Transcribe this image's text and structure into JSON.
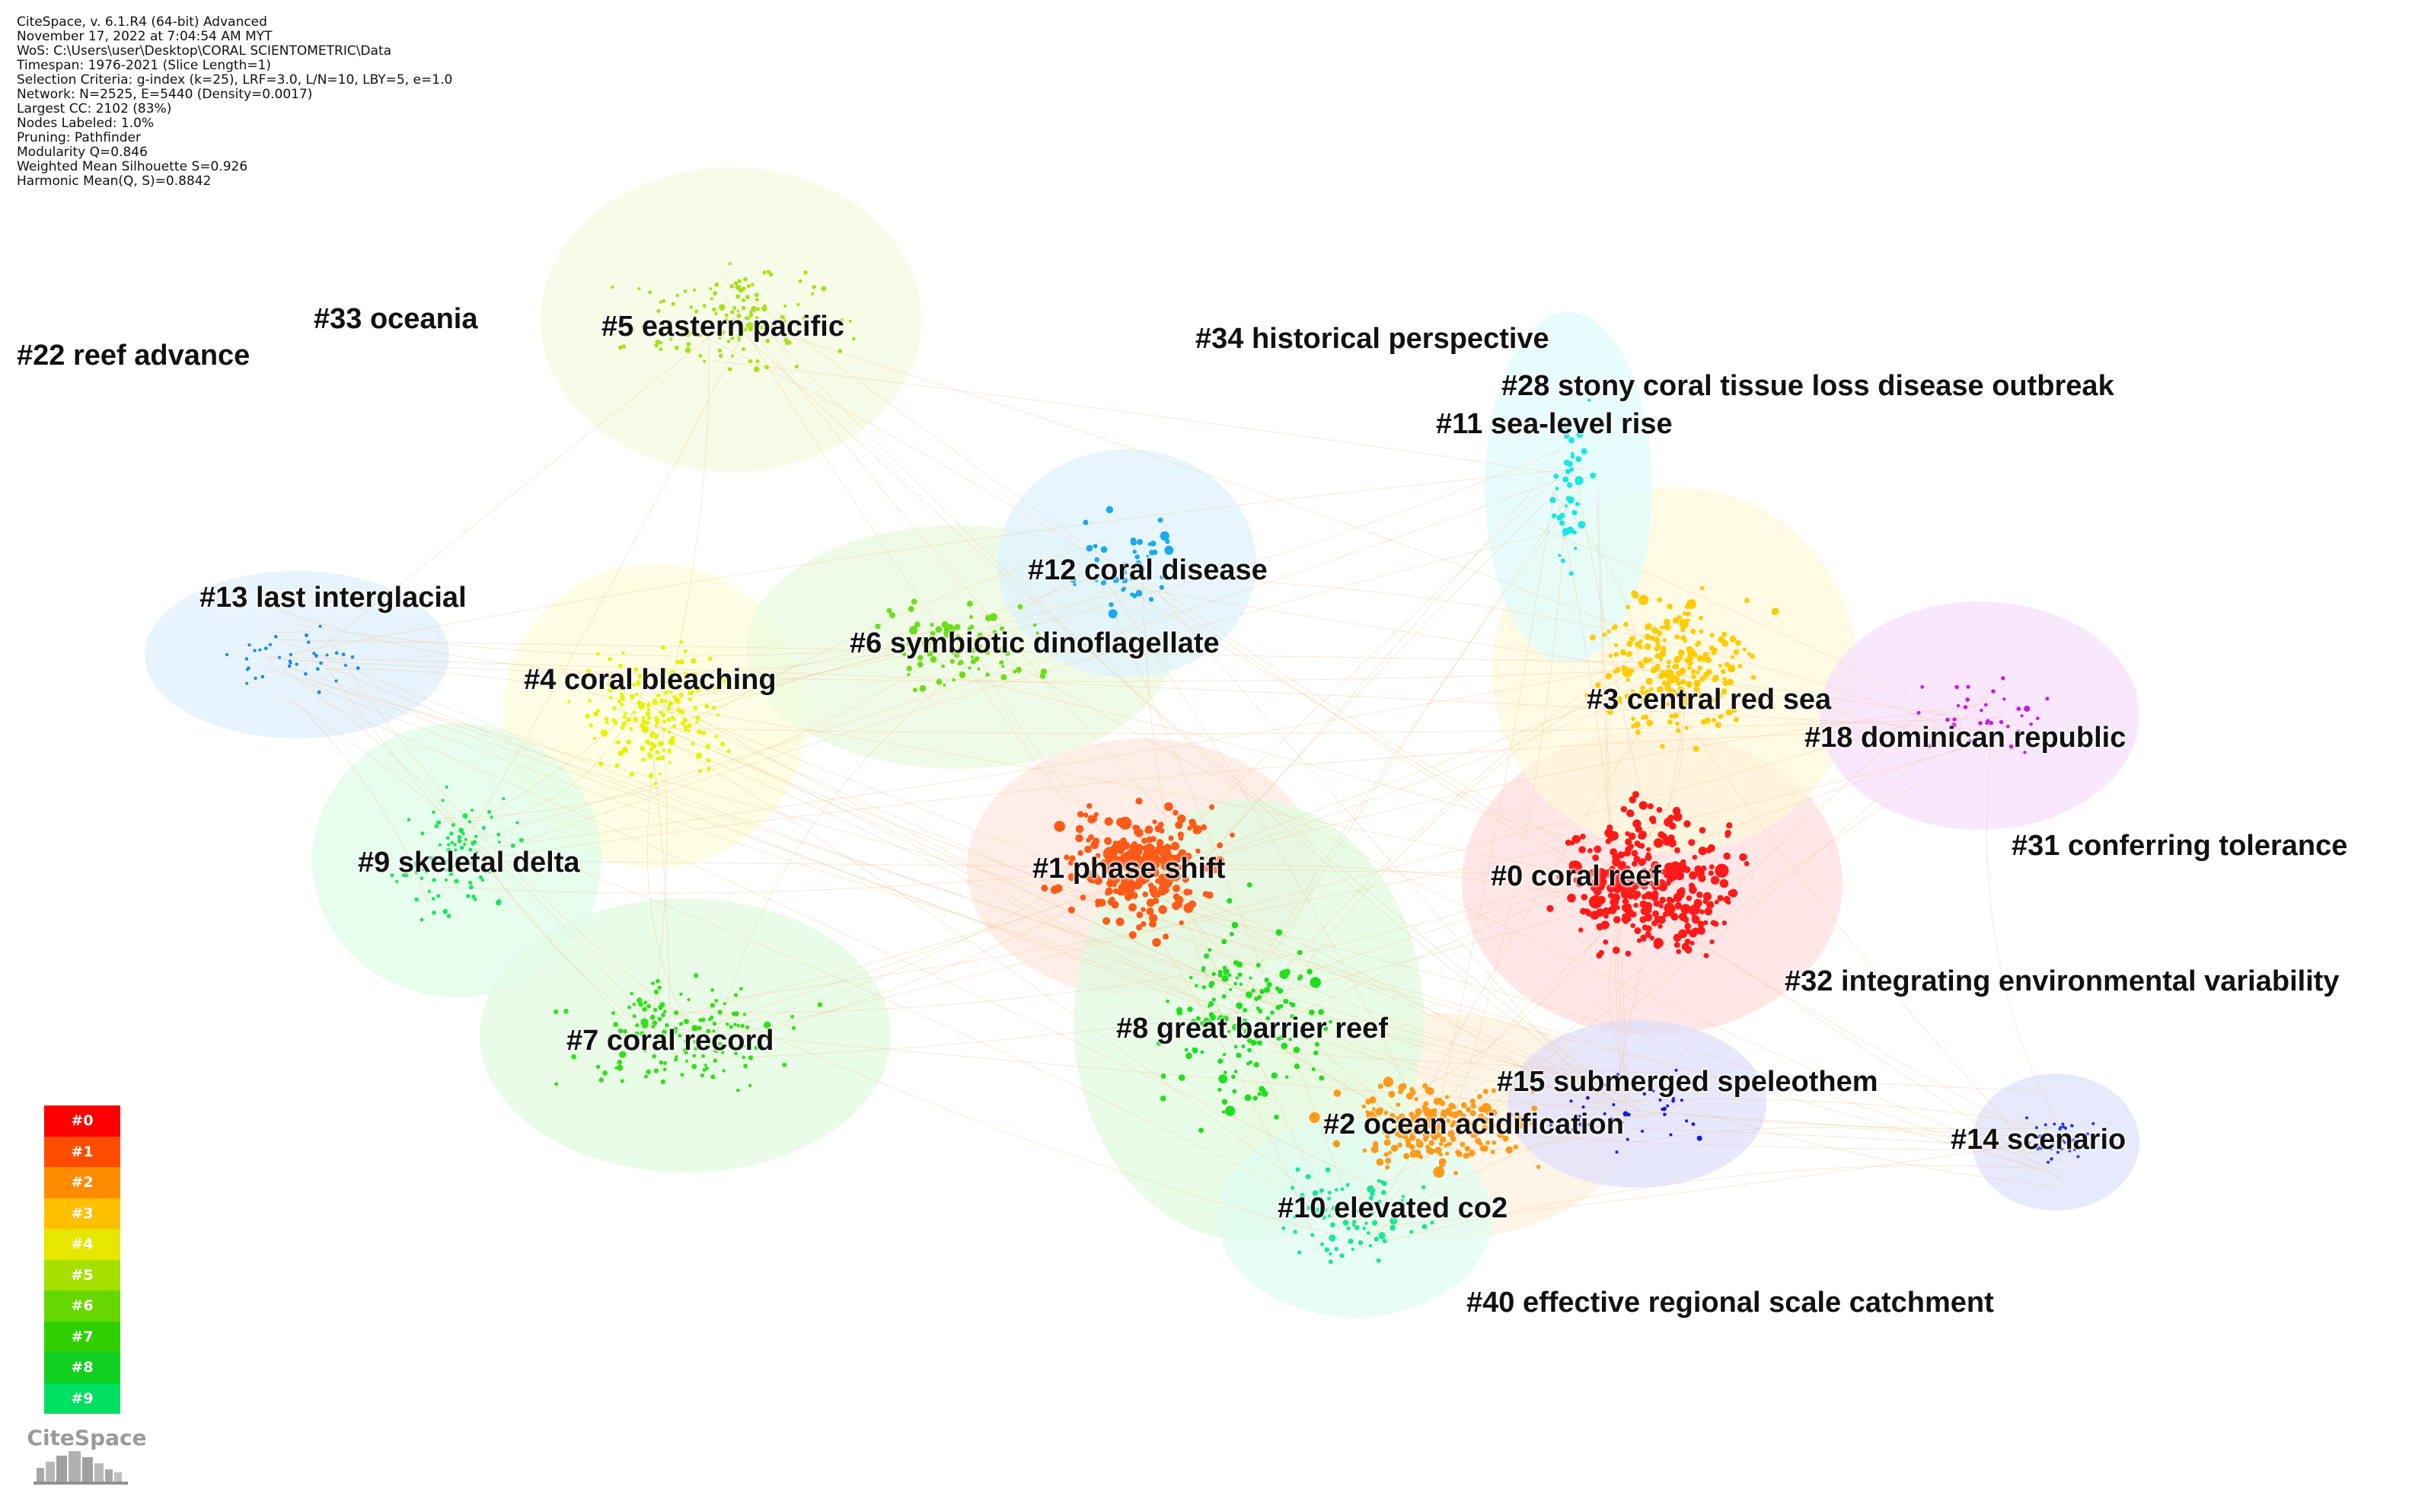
{
  "info_lines": [
    "CiteSpace, v. 6.1.R4 (64-bit) Advanced",
    "November 17, 2022 at 7:04:54 AM MYT",
    "WoS: C:\\Users\\user\\Desktop\\CORAL SCIENTOMETRIC\\Data",
    "Timespan: 1976-2021 (Slice Length=1)",
    "Selection Criteria: g-index (k=25), LRF=3.0, L/N=10, LBY=5, e=1.0",
    "Network: N=2525, E=5440 (Density=0.0017)",
    "Largest CC: 2102 (83%)",
    "Nodes Labeled: 1.0%",
    "Pruning: Pathfinder",
    "Modularity Q=0.846",
    "Weighted Mean Silhouette S=0.926",
    "Harmonic Mean(Q, S)=0.8842"
  ],
  "clusters": [
    {
      "label": "#0 coral reef",
      "color": "#ff1a1a",
      "n": 320,
      "spread": [
        150,
        130
      ],
      "size": [
        6,
        12
      ]
    },
    {
      "label": "#1 phase shift",
      "color": "#ff5a1a",
      "n": 260,
      "spread": [
        140,
        110
      ],
      "size": [
        6,
        12
      ]
    },
    {
      "label": "#2 ocean acidification",
      "color": "#ff9a1a",
      "n": 200,
      "spread": [
        170,
        80
      ],
      "size": [
        5,
        10
      ]
    },
    {
      "label": "#3 central red sea",
      "color": "#ffcc00",
      "n": 220,
      "spread": [
        150,
        130
      ],
      "size": [
        5,
        9
      ]
    },
    {
      "label": "#4 coral bleaching",
      "color": "#e6f200",
      "n": 190,
      "spread": [
        130,
        120
      ],
      "size": [
        4,
        7
      ]
    },
    {
      "label": "#5 eastern pacific",
      "color": "#a8e11a",
      "n": 130,
      "spread": [
        190,
        100
      ],
      "size": [
        4,
        6
      ]
    },
    {
      "label": "#6 symbiotic dinoflagellate",
      "color": "#6fdc1a",
      "n": 80,
      "spread": [
        150,
        80
      ],
      "size": [
        4,
        9
      ]
    },
    {
      "label": "#7 coral record",
      "color": "#33e01a",
      "n": 140,
      "spread": [
        200,
        100
      ],
      "size": [
        4,
        7
      ]
    },
    {
      "label": "#8 great barrier reef",
      "color": "#1ee01e",
      "n": 150,
      "spread": [
        150,
        200
      ],
      "size": [
        4,
        9
      ]
    },
    {
      "label": "#9 skeletal delta",
      "color": "#1ae65a",
      "n": 90,
      "spread": [
        110,
        110
      ],
      "size": [
        4,
        6
      ]
    },
    {
      "label": "#10 elevated co2",
      "color": "#1ae69a",
      "n": 80,
      "spread": [
        120,
        90
      ],
      "size": [
        4,
        7
      ]
    },
    {
      "label": "#11 sea-level rise",
      "color": "#1ae6e6",
      "n": 40,
      "spread": [
        40,
        160
      ],
      "size": [
        4,
        10
      ]
    },
    {
      "label": "#12 coral disease",
      "color": "#1aaaf0",
      "n": 45,
      "spread": [
        100,
        90
      ],
      "size": [
        4,
        9
      ]
    },
    {
      "label": "#13 last interglacial",
      "color": "#1a8ce6",
      "n": 35,
      "spread": [
        140,
        60
      ],
      "size": [
        4,
        5
      ]
    },
    {
      "label": "#14 scenario",
      "color": "#1a3ae6",
      "n": 45,
      "spread": [
        60,
        40
      ],
      "size": [
        3,
        4
      ]
    },
    {
      "label": "#15 submerged speleothem",
      "color": "#1a1ae6",
      "n": 35,
      "spread": [
        150,
        90
      ],
      "size": [
        3,
        5
      ]
    },
    {
      "label": "#18 dominican republic",
      "color": "#c81ae6",
      "n": 35,
      "spread": [
        130,
        90
      ],
      "size": [
        4,
        6
      ]
    },
    {
      "label": "#22 reef advance",
      "color": "#ffcc80",
      "n": 0,
      "spread": [
        0,
        0
      ],
      "size": [
        0,
        0
      ]
    },
    {
      "label": "#28 stony coral tissue loss disease outbreak",
      "color": "#1ae6e6",
      "n": 0,
      "spread": [
        0,
        0
      ],
      "size": [
        0,
        0
      ]
    },
    {
      "label": "#31 conferring tolerance",
      "color": "#ffd280",
      "n": 0,
      "spread": [
        0,
        0
      ],
      "size": [
        0,
        0
      ]
    },
    {
      "label": "#32 integrating environmental variability",
      "color": "#ff6a6a",
      "n": 0,
      "spread": [
        0,
        0
      ],
      "size": [
        0,
        0
      ]
    },
    {
      "label": "#33 oceania",
      "color": "#ffcc80",
      "n": 0,
      "spread": [
        0,
        0
      ],
      "size": [
        0,
        0
      ]
    },
    {
      "label": "#34 historical perspective",
      "color": "#ffd9a0",
      "n": 0,
      "spread": [
        0,
        0
      ],
      "size": [
        0,
        0
      ]
    },
    {
      "label": "#40 effective regional scale catchment",
      "color": "#1ae6aa",
      "n": 0,
      "spread": [
        0,
        0
      ],
      "size": [
        0,
        0
      ]
    }
  ],
  "legend": [
    {
      "label": "#0",
      "color": "#ff0000"
    },
    {
      "label": "#1",
      "color": "#ff4d00"
    },
    {
      "label": "#2",
      "color": "#ff8c00"
    },
    {
      "label": "#3",
      "color": "#ffc000"
    },
    {
      "label": "#4",
      "color": "#e6e600"
    },
    {
      "label": "#5",
      "color": "#a6e000"
    },
    {
      "label": "#6",
      "color": "#66d800"
    },
    {
      "label": "#7",
      "color": "#30d000"
    },
    {
      "label": "#8",
      "color": "#10d020"
    },
    {
      "label": "#9",
      "color": "#00e060"
    }
  ],
  "logo_text": "CiteSpace"
}
